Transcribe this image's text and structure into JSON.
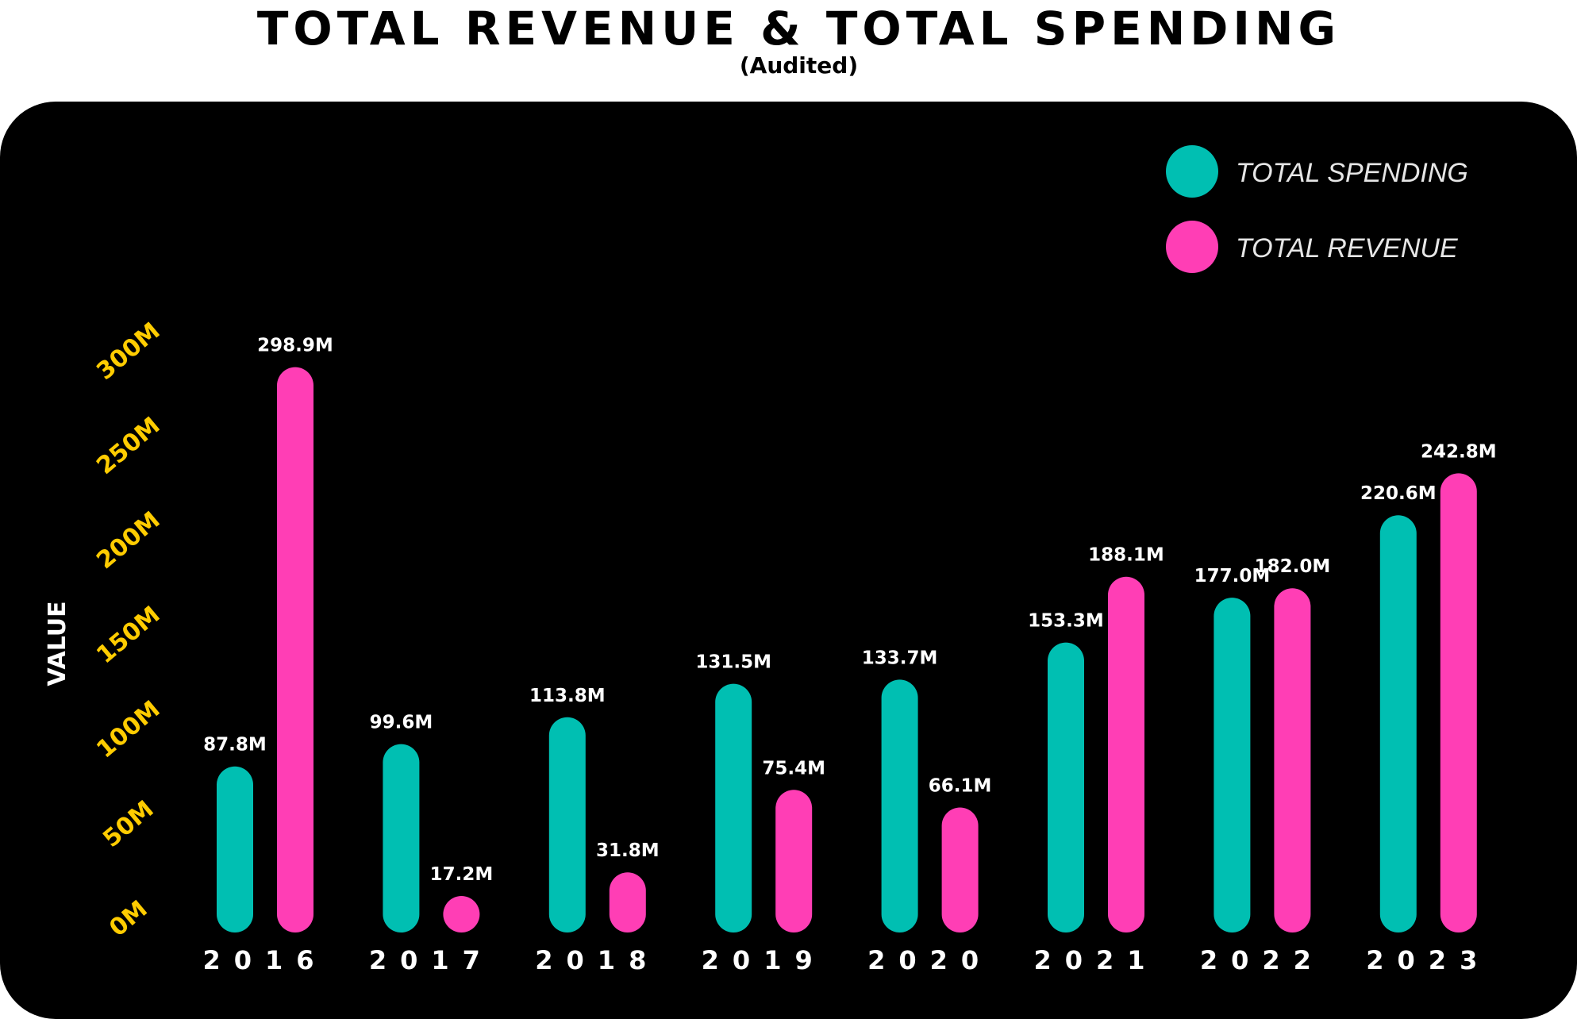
{
  "title": "TOTAL REVENUE &  TOTAL SPENDING",
  "subtitle": "(Audited)",
  "colors": {
    "spending": "#00BFB2",
    "revenue": "#FF3EB5",
    "tick": "#FFCC00",
    "panel": "#000000",
    "text": "#FFFFFF"
  },
  "chart_data": {
    "type": "bar",
    "title": "TOTAL REVENUE &  TOTAL SPENDING",
    "subtitle": "(Audited)",
    "ylabel": "VALUE",
    "xlabel": "",
    "ylim": [
      0,
      300
    ],
    "yticks": [
      "0M",
      "50M",
      "100M",
      "150M",
      "200M",
      "250M",
      "300M"
    ],
    "legend_position": "top-right",
    "categories": [
      "2016",
      "2017",
      "2018",
      "2019",
      "2020",
      "2021",
      "2022",
      "2023"
    ],
    "series": [
      {
        "name": "TOTAL SPENDING",
        "values": [
          87.8,
          99.6,
          113.8,
          131.5,
          133.7,
          153.3,
          177.0,
          220.6
        ],
        "labels": [
          "87.8M",
          "99.6M",
          "113.8M",
          "131.5M",
          "133.7M",
          "153.3M",
          "177.0M",
          "220.6M"
        ]
      },
      {
        "name": "TOTAL REVENUE",
        "values": [
          298.9,
          17.2,
          31.8,
          75.4,
          66.1,
          188.1,
          182.0,
          242.8
        ],
        "labels": [
          "298.9M",
          "17.2M",
          "31.8M",
          "75.4M",
          "66.1M",
          "188.1M",
          "182.0M",
          "242.8M"
        ]
      }
    ]
  }
}
